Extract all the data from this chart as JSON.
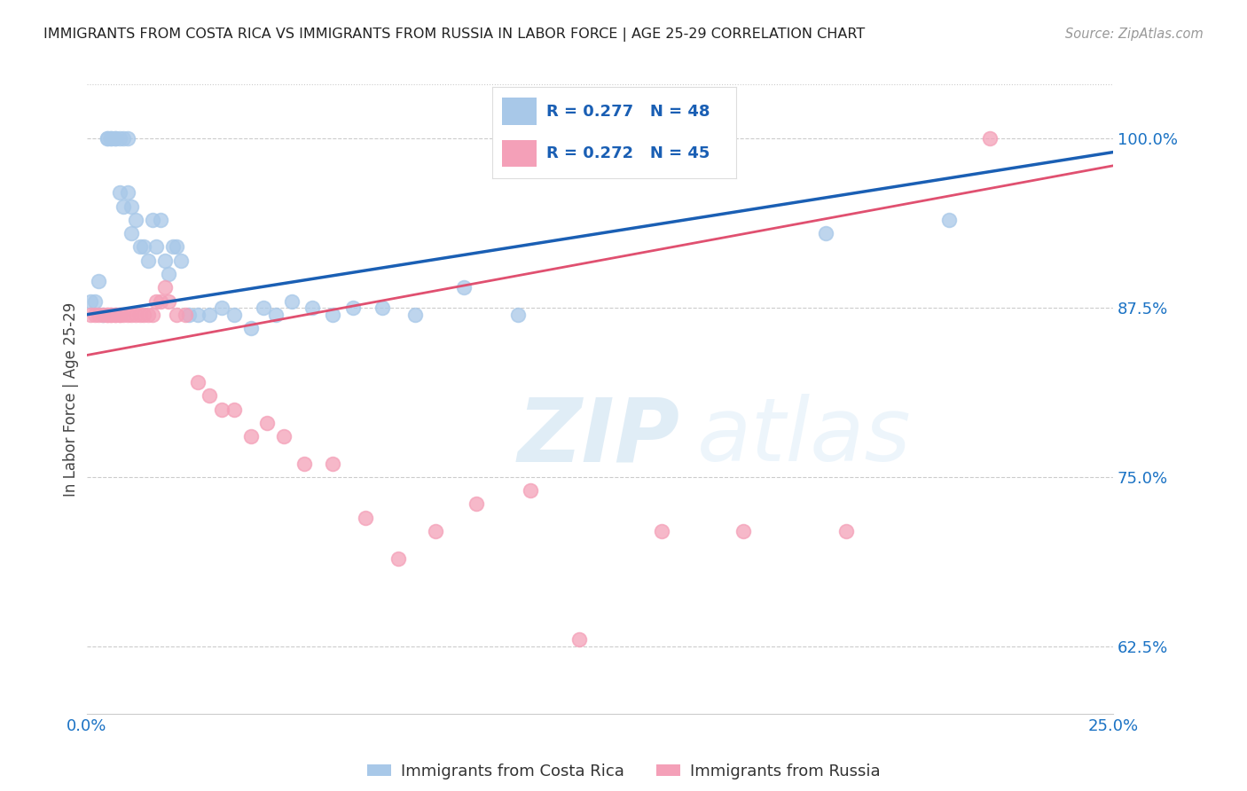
{
  "title": "IMMIGRANTS FROM COSTA RICA VS IMMIGRANTS FROM RUSSIA IN LABOR FORCE | AGE 25-29 CORRELATION CHART",
  "source": "Source: ZipAtlas.com",
  "ylabel": "In Labor Force | Age 25-29",
  "xlim": [
    0.0,
    0.25
  ],
  "ylim": [
    0.575,
    1.04
  ],
  "xticks": [
    0.0,
    0.05,
    0.1,
    0.15,
    0.2,
    0.25
  ],
  "xticklabels": [
    "0.0%",
    "",
    "",
    "",
    "",
    "25.0%"
  ],
  "yticks_right": [
    0.625,
    0.75,
    0.875,
    1.0
  ],
  "ytick_labels_right": [
    "62.5%",
    "75.0%",
    "87.5%",
    "100.0%"
  ],
  "costa_rica_color": "#a8c8e8",
  "russia_color": "#f4a0b8",
  "costa_rica_line_color": "#1a5fb4",
  "russia_line_color": "#e05070",
  "costa_rica_R": 0.277,
  "costa_rica_N": 48,
  "russia_R": 0.272,
  "russia_N": 45,
  "title_color": "#222222",
  "axis_label_color": "#1a72c4",
  "legend_R_color": "#1a5fb4",
  "costa_rica_x": [
    0.001,
    0.002,
    0.003,
    0.004,
    0.005,
    0.005,
    0.006,
    0.006,
    0.007,
    0.007,
    0.008,
    0.008,
    0.009,
    0.009,
    0.01,
    0.01,
    0.011,
    0.011,
    0.012,
    0.013,
    0.014,
    0.015,
    0.016,
    0.017,
    0.018,
    0.019,
    0.02,
    0.021,
    0.022,
    0.023,
    0.025,
    0.027,
    0.03,
    0.033,
    0.036,
    0.04,
    0.043,
    0.046,
    0.05,
    0.055,
    0.06,
    0.065,
    0.072,
    0.08,
    0.092,
    0.105,
    0.18,
    0.21
  ],
  "costa_rica_y": [
    0.88,
    0.88,
    0.895,
    0.87,
    1.0,
    1.0,
    1.0,
    1.0,
    1.0,
    1.0,
    1.0,
    0.96,
    1.0,
    0.95,
    1.0,
    0.96,
    0.95,
    0.93,
    0.94,
    0.92,
    0.92,
    0.91,
    0.94,
    0.92,
    0.94,
    0.91,
    0.9,
    0.92,
    0.92,
    0.91,
    0.87,
    0.87,
    0.87,
    0.875,
    0.87,
    0.86,
    0.875,
    0.87,
    0.88,
    0.875,
    0.87,
    0.875,
    0.875,
    0.87,
    0.89,
    0.87,
    0.93,
    0.94
  ],
  "russia_x": [
    0.001,
    0.002,
    0.003,
    0.004,
    0.005,
    0.005,
    0.006,
    0.006,
    0.007,
    0.007,
    0.008,
    0.008,
    0.009,
    0.01,
    0.011,
    0.012,
    0.013,
    0.014,
    0.015,
    0.016,
    0.017,
    0.018,
    0.019,
    0.02,
    0.022,
    0.024,
    0.027,
    0.03,
    0.033,
    0.036,
    0.04,
    0.044,
    0.048,
    0.053,
    0.06,
    0.068,
    0.076,
    0.085,
    0.095,
    0.108,
    0.12,
    0.14,
    0.16,
    0.185,
    0.22
  ],
  "russia_y": [
    0.87,
    0.87,
    0.87,
    0.87,
    0.87,
    0.87,
    0.87,
    0.87,
    0.87,
    0.87,
    0.87,
    0.87,
    0.87,
    0.87,
    0.87,
    0.87,
    0.87,
    0.87,
    0.87,
    0.87,
    0.88,
    0.88,
    0.89,
    0.88,
    0.87,
    0.87,
    0.82,
    0.81,
    0.8,
    0.8,
    0.78,
    0.79,
    0.78,
    0.76,
    0.76,
    0.72,
    0.69,
    0.71,
    0.73,
    0.74,
    0.63,
    0.71,
    0.71,
    0.71,
    1.0
  ],
  "trend_cr_x0": 0.0,
  "trend_cr_x1": 0.25,
  "trend_cr_y0": 0.87,
  "trend_cr_y1": 0.99,
  "trend_ru_x0": 0.0,
  "trend_ru_x1": 0.25,
  "trend_ru_y0": 0.84,
  "trend_ru_y1": 0.98
}
